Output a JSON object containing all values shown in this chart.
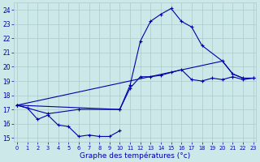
{
  "xlabel": "Graphe des températures (°c)",
  "bg_color": "#cce8e8",
  "grid_color": "#aacccc",
  "line_color": "#0000aa",
  "series1_x": [
    0,
    1,
    2,
    3,
    4,
    5,
    6,
    7,
    8,
    9,
    10
  ],
  "series1_y": [
    17.3,
    17.1,
    16.3,
    16.6,
    15.9,
    15.8,
    15.1,
    15.2,
    15.1,
    15.1,
    15.5
  ],
  "series2_x": [
    0,
    3,
    6,
    10,
    11,
    12,
    13,
    14,
    15,
    16,
    17,
    18,
    19,
    20,
    21,
    22,
    23
  ],
  "series2_y": [
    17.3,
    16.7,
    17.0,
    17.0,
    18.5,
    19.3,
    19.3,
    19.4,
    19.6,
    19.8,
    19.1,
    19.0,
    19.2,
    19.1,
    19.3,
    19.1,
    19.2
  ],
  "series3_x": [
    0,
    10,
    11,
    12,
    13,
    14,
    15,
    16,
    17,
    18,
    20,
    21,
    22,
    23
  ],
  "series3_y": [
    17.3,
    17.0,
    18.7,
    21.8,
    23.2,
    23.7,
    24.1,
    23.2,
    22.8,
    21.5,
    20.4,
    19.5,
    19.2,
    19.2
  ],
  "series4_x": [
    0,
    20,
    21,
    22,
    23
  ],
  "series4_y": [
    17.3,
    20.4,
    19.5,
    19.2,
    19.2
  ],
  "xlim": [
    -0.3,
    23.3
  ],
  "ylim": [
    14.7,
    24.5
  ],
  "yticks": [
    15,
    16,
    17,
    18,
    19,
    20,
    21,
    22,
    23,
    24
  ],
  "xticks": [
    0,
    1,
    2,
    3,
    4,
    5,
    6,
    7,
    8,
    9,
    10,
    11,
    12,
    13,
    14,
    15,
    16,
    17,
    18,
    19,
    20,
    21,
    22,
    23
  ]
}
